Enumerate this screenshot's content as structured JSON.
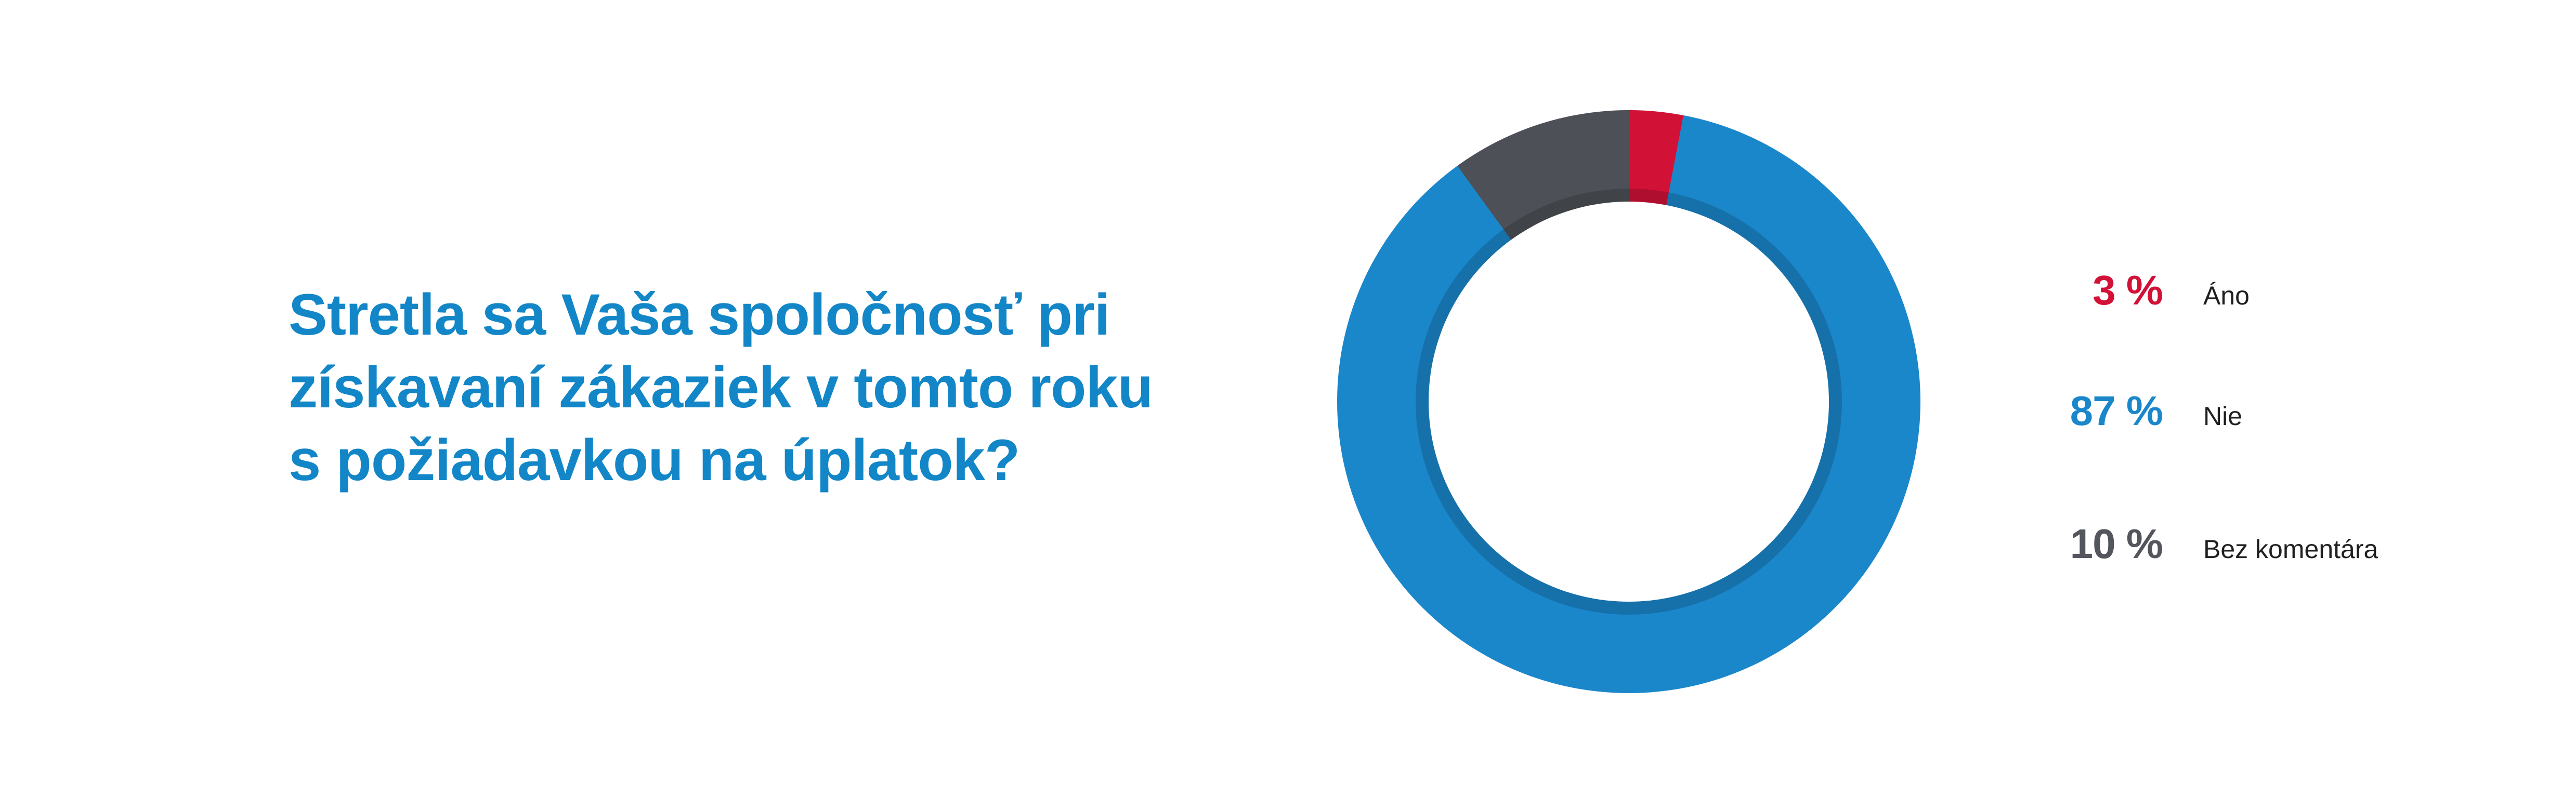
{
  "question": {
    "lines": [
      "Stretla sa Vaša spoločnosť pri",
      "získavaní zákaziek v tomto roku",
      "s požiadavkou na úplatok?"
    ],
    "color": "#1286c7"
  },
  "chart_data": {
    "type": "pie",
    "subtype": "donut",
    "title": "Stretla sa Vaša spoločnosť pri získavaní zákaziek v tomto roku s požiadavkou na úplatok?",
    "categories": [
      "Áno",
      "Nie",
      "Bez komentára"
    ],
    "values": [
      3,
      87,
      10
    ],
    "unit": "%",
    "colors": [
      "#d21137",
      "#1b87cb",
      "#4d5056"
    ],
    "start_angle_deg": 0,
    "direction": "clockwise",
    "inner_radius_ratio": 0.686,
    "legend_position": "right",
    "legend": [
      {
        "value_label": "3 %",
        "label": "Áno",
        "color": "#d21137"
      },
      {
        "value_label": "87 %",
        "label": "Nie",
        "color": "#1b87cb"
      },
      {
        "value_label": "10 %",
        "label": "Bez komentára",
        "color": "#53565c"
      }
    ]
  },
  "colors": {
    "background": "#ffffff",
    "title_blue": "#1286c7",
    "donut_blue": "#1b87cb",
    "donut_red": "#d21137",
    "donut_gray": "#4d5056",
    "label_text": "#1f1f1f",
    "inner_rim_shadow": "rgba(0,0,0,0.16)"
  }
}
